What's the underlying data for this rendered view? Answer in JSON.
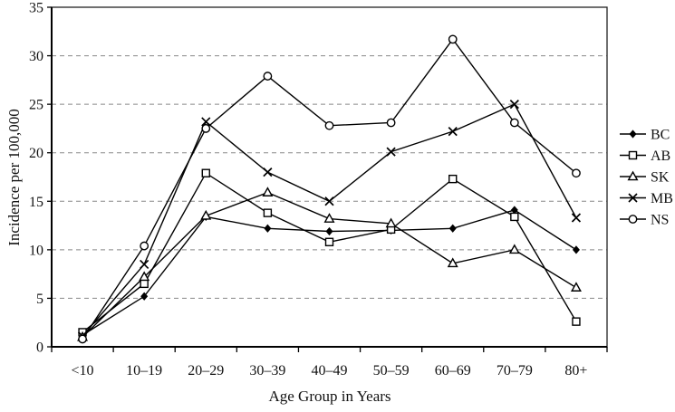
{
  "chart_data": {
    "type": "line",
    "title": "",
    "xlabel": "Age Group in Years",
    "ylabel": "Incidence per 100,000",
    "categories": [
      "<10",
      "10–19",
      "20–29",
      "30–39",
      "40–49",
      "50–59",
      "60–69",
      "70–79",
      "80+"
    ],
    "y_ticks": [
      0,
      5,
      10,
      15,
      20,
      25,
      30,
      35
    ],
    "ylim": [
      0,
      35
    ],
    "grid": "horizontal-dashed",
    "legend_position": "right",
    "line_color": "#000000",
    "grid_color": "#888888",
    "series": [
      {
        "name": "BC",
        "marker": "filled-diamond",
        "values": [
          1.2,
          5.2,
          13.4,
          12.2,
          11.9,
          12.0,
          12.2,
          14.1,
          10.0
        ]
      },
      {
        "name": "AB",
        "marker": "open-square",
        "values": [
          1.5,
          6.5,
          17.9,
          13.8,
          10.8,
          12.1,
          17.3,
          13.4,
          2.6
        ]
      },
      {
        "name": "SK",
        "marker": "open-triangle",
        "values": [
          1.0,
          7.2,
          13.5,
          15.9,
          13.2,
          12.7,
          8.6,
          10.0,
          6.1
        ]
      },
      {
        "name": "MB",
        "marker": "x-cross",
        "values": [
          1.1,
          8.5,
          23.2,
          18.0,
          15.0,
          20.1,
          22.2,
          25.0,
          13.3
        ]
      },
      {
        "name": "NS",
        "marker": "open-circle",
        "values": [
          0.8,
          10.4,
          22.5,
          27.9,
          22.8,
          23.1,
          31.7,
          23.1,
          17.9
        ]
      }
    ]
  }
}
